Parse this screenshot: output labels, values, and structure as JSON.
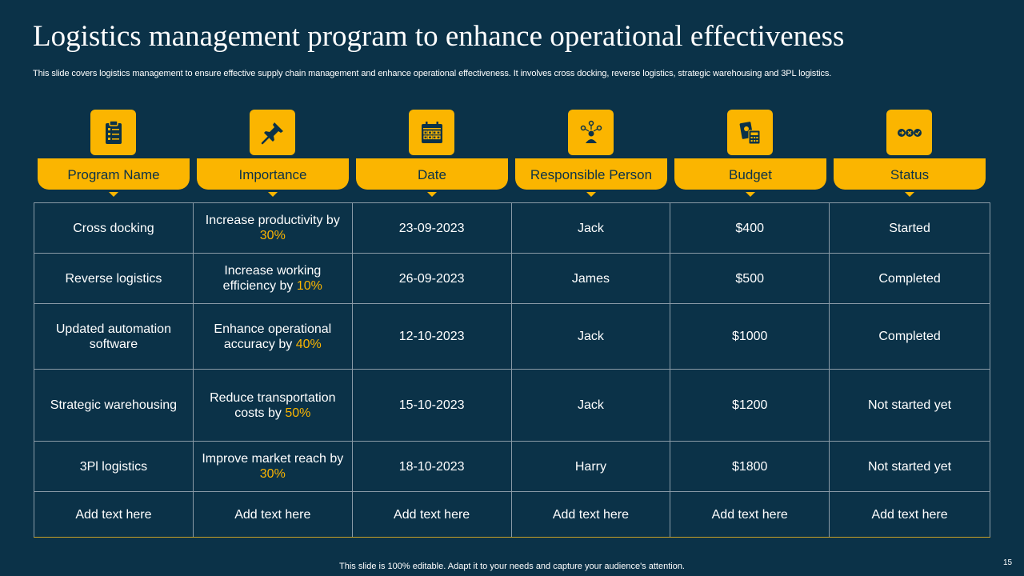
{
  "title": "Logistics management program to enhance operational effectiveness",
  "subtitle": "This slide covers logistics  management to ensure effective supply chain management and  enhance operational effectiveness. It involves cross docking, reverse logistics, strategic warehousing and 3PL logistics.",
  "columns": [
    {
      "label": "Program Name",
      "icon": "clipboard-checklist-icon"
    },
    {
      "label": "Importance",
      "icon": "pushpin-icon"
    },
    {
      "label": "Date",
      "icon": "calendar-icon"
    },
    {
      "label": "Responsible Person",
      "icon": "person-network-icon"
    },
    {
      "label": "Budget",
      "icon": "cash-calculator-icon"
    },
    {
      "label": "Status",
      "icon": "status-circles-icon"
    }
  ],
  "rows": [
    {
      "program": "Cross docking",
      "importance_text": "Increase productivity by",
      "importance_pct": "30%",
      "date": "23-09-2023",
      "person": "Jack",
      "budget": "$400",
      "status": "Started"
    },
    {
      "program": "Reverse logistics",
      "importance_text": "Increase working efficiency by",
      "importance_pct": "10%",
      "date": "26-09-2023",
      "person": "James",
      "budget": "$500",
      "status": "Completed"
    },
    {
      "program": "Updated automation software",
      "importance_text": "Enhance operational accuracy by",
      "importance_pct": "40%",
      "date": "12-10-2023",
      "person": "Jack",
      "budget": "$1000",
      "status": "Completed"
    },
    {
      "program": "Strategic warehousing",
      "importance_text": "Reduce transportation costs by",
      "importance_pct": "50%",
      "date": "15-10-2023",
      "person": "Jack",
      "budget": "$1200",
      "status": "Not started yet"
    },
    {
      "program": "3Pl logistics",
      "importance_text": "Improve market reach by",
      "importance_pct": "30%",
      "date": "18-10-2023",
      "person": "Harry",
      "budget": "$1800",
      "status": "Not started yet"
    }
  ],
  "placeholder_row": [
    "Add text here",
    "Add text here",
    "Add text here",
    "Add text here",
    "Add text here",
    "Add text here"
  ],
  "footer": "This slide is 100% editable. Adapt it to your needs and capture your audience's attention.",
  "page_number": "15",
  "colors": {
    "background": "#0b3248",
    "accent": "#fbb500"
  }
}
